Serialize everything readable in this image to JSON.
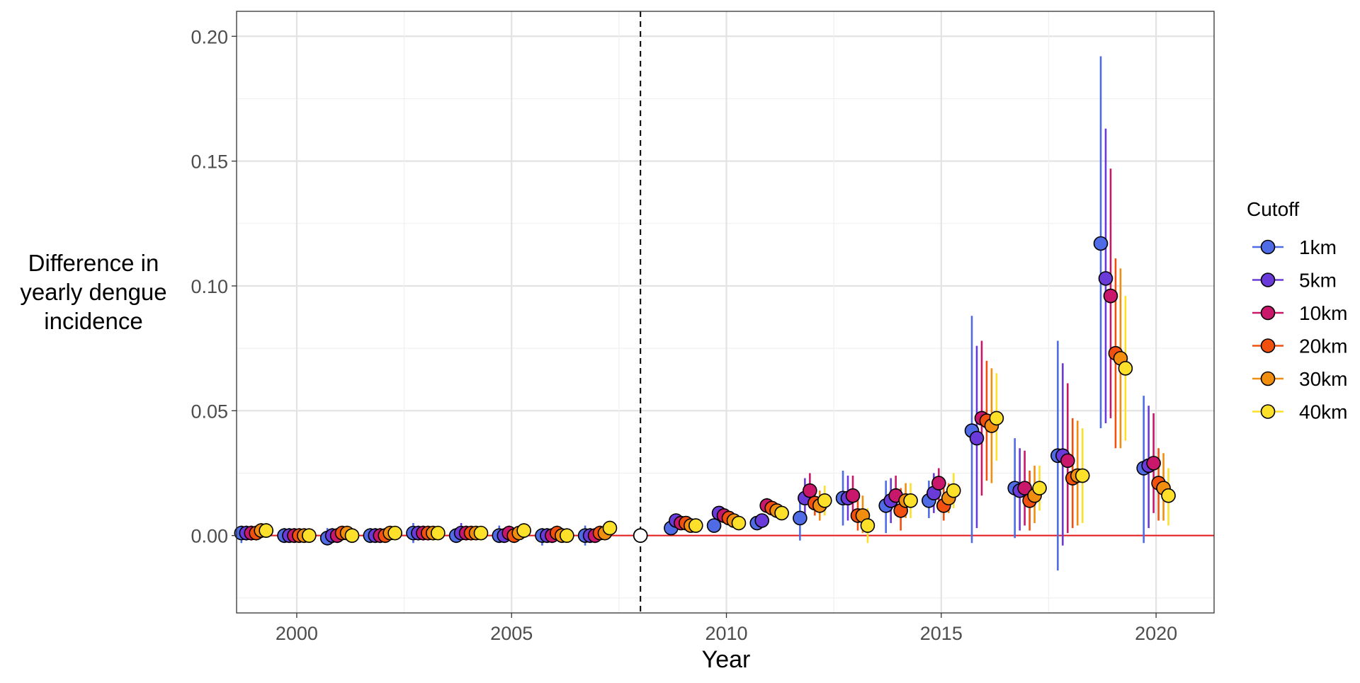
{
  "chart_data": {
    "type": "scatter",
    "title": "",
    "xlabel": "Year",
    "ylabel": "Difference in yearly dengue incidence",
    "ylabel_lines": [
      "Difference in",
      "yearly dengue",
      "incidence"
    ],
    "xlim": [
      1998.6,
      2021.35
    ],
    "ylim": [
      -0.031,
      0.21
    ],
    "x_ticks": [
      2000,
      2005,
      2010,
      2015,
      2020
    ],
    "y_ticks": [
      0.0,
      0.05,
      0.1,
      0.15,
      0.2
    ],
    "y_tick_labels": [
      "0.00",
      "0.05",
      "0.10",
      "0.15",
      "0.20"
    ],
    "grid": true,
    "legend_position": "right",
    "legend_title": "Cutoff",
    "reference_year": 2008,
    "reference_value": 0,
    "reference_vline_color": "#000000",
    "zero_line_color": "#e41a1c",
    "x": [
      1999,
      2000,
      2001,
      2002,
      2003,
      2004,
      2005,
      2006,
      2007,
      2008,
      2009,
      2010,
      2011,
      2012,
      2013,
      2014,
      2015,
      2016,
      2017,
      2018,
      2019,
      2020
    ],
    "series": [
      {
        "name": "1km",
        "color": "#4F6CE6",
        "values": [
          0.001,
          0.0,
          -0.001,
          0.0,
          0.001,
          0.0,
          0.0,
          0.0,
          0.0,
          0.0,
          0.003,
          0.004,
          0.005,
          0.007,
          0.015,
          0.012,
          0.014,
          0.042,
          0.019,
          0.032,
          0.117,
          0.027
        ],
        "lower": [
          -0.003,
          -0.003,
          -0.004,
          -0.003,
          -0.003,
          -0.003,
          -0.003,
          -0.004,
          -0.004,
          0.0,
          0.001,
          0.002,
          0.003,
          -0.002,
          0.004,
          0.001,
          0.007,
          -0.003,
          -0.001,
          -0.014,
          0.043,
          -0.003
        ],
        "upper": [
          0.004,
          0.003,
          0.003,
          0.003,
          0.005,
          0.003,
          0.004,
          0.003,
          0.004,
          0.0,
          0.005,
          0.006,
          0.007,
          0.015,
          0.026,
          0.022,
          0.022,
          0.088,
          0.039,
          0.078,
          0.192,
          0.056
        ]
      },
      {
        "name": "5km",
        "color": "#6A3BD9",
        "values": [
          0.001,
          0.0,
          0.0,
          0.0,
          0.001,
          0.001,
          0.0,
          0.0,
          0.0,
          0.0,
          0.006,
          0.009,
          0.006,
          0.015,
          0.015,
          0.014,
          0.017,
          0.039,
          0.018,
          0.032,
          0.103,
          0.028
        ],
        "lower": [
          -0.002,
          -0.003,
          -0.003,
          -0.003,
          -0.002,
          -0.002,
          -0.003,
          -0.003,
          -0.003,
          0.0,
          0.003,
          0.006,
          0.004,
          0.007,
          0.006,
          0.005,
          0.009,
          0.003,
          0.002,
          -0.004,
          0.045,
          0.003
        ],
        "upper": [
          0.004,
          0.003,
          0.003,
          0.003,
          0.004,
          0.005,
          0.003,
          0.003,
          0.003,
          0.0,
          0.008,
          0.011,
          0.008,
          0.023,
          0.024,
          0.023,
          0.025,
          0.076,
          0.035,
          0.069,
          0.163,
          0.052
        ]
      },
      {
        "name": "10km",
        "color": "#C9186B",
        "values": [
          0.001,
          0.0,
          0.0,
          0.0,
          0.001,
          0.001,
          0.001,
          0.0,
          0.0,
          0.0,
          0.005,
          0.008,
          0.012,
          0.018,
          0.016,
          0.016,
          0.021,
          0.047,
          0.019,
          0.03,
          0.096,
          0.029
        ],
        "lower": [
          -0.002,
          -0.003,
          -0.003,
          -0.003,
          -0.002,
          -0.002,
          -0.002,
          -0.003,
          -0.003,
          0.0,
          0.003,
          0.005,
          0.009,
          0.011,
          0.008,
          0.008,
          0.014,
          0.016,
          0.004,
          0.001,
          0.047,
          0.009
        ],
        "upper": [
          0.004,
          0.003,
          0.003,
          0.003,
          0.004,
          0.004,
          0.004,
          0.003,
          0.003,
          0.0,
          0.007,
          0.011,
          0.015,
          0.025,
          0.024,
          0.024,
          0.027,
          0.078,
          0.034,
          0.061,
          0.147,
          0.049
        ]
      },
      {
        "name": "20km",
        "color": "#F2500F",
        "values": [
          0.001,
          0.0,
          0.001,
          0.0,
          0.001,
          0.001,
          0.0,
          0.001,
          0.001,
          0.0,
          0.005,
          0.007,
          0.011,
          0.013,
          0.008,
          0.01,
          0.012,
          0.046,
          0.014,
          0.023,
          0.073,
          0.021
        ],
        "lower": [
          -0.002,
          -0.003,
          -0.002,
          -0.003,
          -0.002,
          -0.002,
          -0.003,
          -0.002,
          -0.002,
          0.0,
          0.003,
          0.005,
          0.008,
          0.008,
          0.002,
          0.002,
          0.006,
          0.022,
          0.002,
          0.003,
          0.035,
          0.006
        ],
        "upper": [
          0.004,
          0.003,
          0.004,
          0.003,
          0.004,
          0.004,
          0.003,
          0.004,
          0.004,
          0.0,
          0.007,
          0.009,
          0.014,
          0.018,
          0.015,
          0.019,
          0.019,
          0.07,
          0.026,
          0.047,
          0.111,
          0.035
        ]
      },
      {
        "name": "30km",
        "color": "#F28E0F",
        "values": [
          0.002,
          0.0,
          0.001,
          0.001,
          0.001,
          0.001,
          0.001,
          0.0,
          0.001,
          0.0,
          0.004,
          0.006,
          0.01,
          0.012,
          0.008,
          0.014,
          0.015,
          0.044,
          0.016,
          0.024,
          0.071,
          0.019
        ],
        "lower": [
          -0.001,
          -0.003,
          -0.002,
          -0.002,
          -0.002,
          -0.002,
          -0.002,
          -0.003,
          -0.002,
          0.0,
          0.002,
          0.004,
          0.007,
          0.006,
          0.001,
          0.007,
          0.009,
          0.021,
          0.005,
          0.004,
          0.035,
          0.006
        ],
        "upper": [
          0.005,
          0.003,
          0.004,
          0.004,
          0.004,
          0.004,
          0.004,
          0.003,
          0.004,
          0.0,
          0.006,
          0.008,
          0.013,
          0.018,
          0.016,
          0.021,
          0.021,
          0.067,
          0.028,
          0.046,
          0.107,
          0.033
        ]
      },
      {
        "name": "40km",
        "color": "#FCE029",
        "values": [
          0.002,
          0.0,
          0.0,
          0.001,
          0.001,
          0.001,
          0.002,
          0.0,
          0.003,
          0.0,
          0.004,
          0.005,
          0.009,
          0.014,
          0.004,
          0.014,
          0.018,
          0.047,
          0.019,
          0.024,
          0.067,
          0.016
        ],
        "lower": [
          -0.001,
          -0.003,
          -0.003,
          -0.002,
          -0.002,
          -0.002,
          -0.001,
          -0.003,
          0.0,
          0.0,
          0.002,
          0.003,
          0.006,
          0.008,
          -0.003,
          0.007,
          0.011,
          0.03,
          0.01,
          0.005,
          0.038,
          0.004
        ],
        "upper": [
          0.005,
          0.003,
          0.003,
          0.004,
          0.004,
          0.004,
          0.005,
          0.003,
          0.006,
          0.0,
          0.006,
          0.007,
          0.012,
          0.02,
          0.011,
          0.021,
          0.025,
          0.065,
          0.028,
          0.043,
          0.096,
          0.027
        ]
      }
    ]
  }
}
